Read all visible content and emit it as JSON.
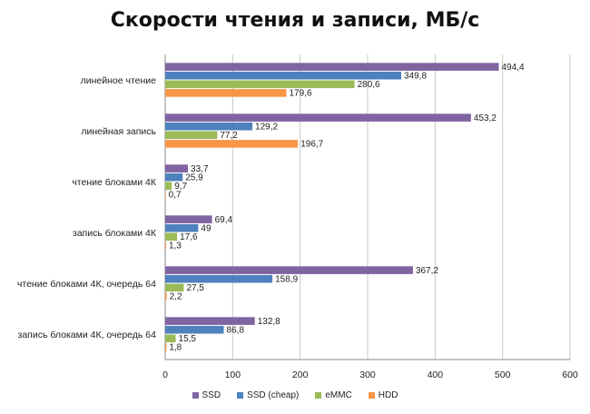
{
  "chart_data": {
    "type": "bar",
    "orientation": "horizontal",
    "title": "Скорости чтения и записи, МБ/с",
    "categories": [
      "линейное чтение",
      "линейная запись",
      "чтение блоками 4К",
      "запись блоками 4К",
      "чтение блоками 4К, очередь 64",
      "запись блоками 4К, очередь 64"
    ],
    "series": [
      {
        "name": "SSD",
        "color": "#8064A2",
        "values": [
          494.4,
          453.2,
          33.7,
          69.4,
          367.2,
          132.8
        ],
        "labels": [
          "494,4",
          "453,2",
          "33,7",
          "69,4",
          "367,2",
          "132,8"
        ]
      },
      {
        "name": "SSD (cheap)",
        "color": "#4F81BD",
        "values": [
          349.8,
          129.2,
          25.9,
          49,
          158.9,
          86.8
        ],
        "labels": [
          "349,8",
          "129,2",
          "25,9",
          "49",
          "158,9",
          "86,8"
        ]
      },
      {
        "name": "eMMC",
        "color": "#9BBB59",
        "values": [
          280.6,
          77.2,
          9.7,
          17.6,
          27.5,
          15.5
        ],
        "labels": [
          "280,6",
          "77,2",
          "9,7",
          "17,6",
          "27,5",
          "15,5"
        ]
      },
      {
        "name": "HDD",
        "color": "#F79646",
        "values": [
          179.6,
          196.7,
          0.7,
          1.3,
          2.2,
          1.8
        ],
        "labels": [
          "179,6",
          "196,7",
          "0,7",
          "1,3",
          "2,2",
          "1,8"
        ]
      }
    ],
    "xlim": [
      0,
      600
    ],
    "xticks": [
      0,
      100,
      200,
      300,
      400,
      500,
      600
    ],
    "grid": "vertical",
    "legend": "bottom"
  }
}
